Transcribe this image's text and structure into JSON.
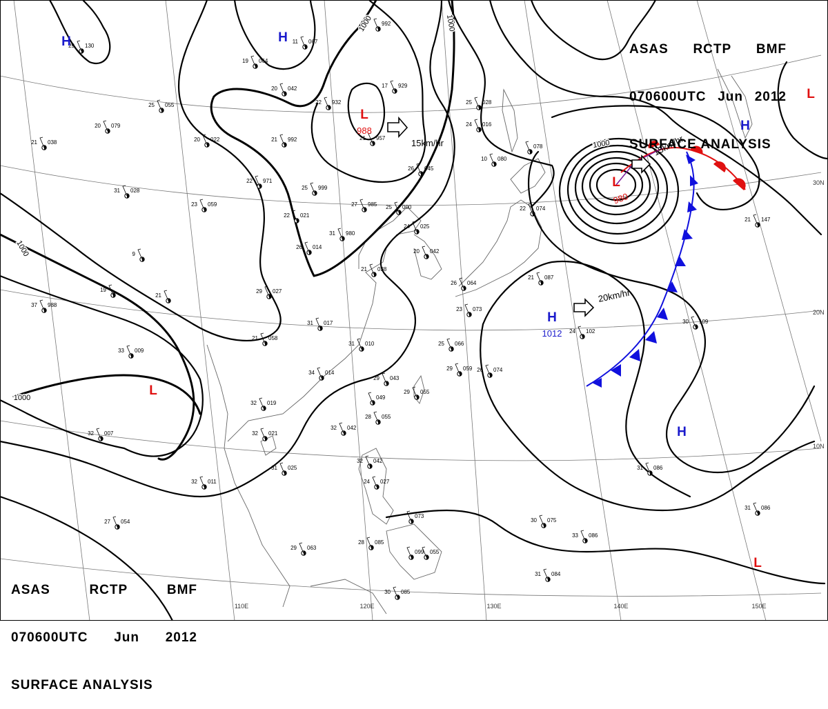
{
  "header_top": {
    "line1": [
      "ASAS",
      "RCTP",
      "BMF"
    ],
    "line2": [
      "070600UTC",
      "Jun",
      "2012"
    ],
    "line3": "SURFACE ANALYSIS"
  },
  "header_bottom": {
    "line1": [
      "ASAS",
      "RCTP",
      "BMF"
    ],
    "line2": [
      "070600UTC",
      "Jun",
      "2012"
    ],
    "line3": "SURFACE ANALYSIS"
  },
  "colors": {
    "high": "#1a1acc",
    "low": "#e01010",
    "cold_front": "#1010dd",
    "warm_front": "#e01010",
    "isobar": "#000000"
  },
  "longitude_labels": [
    "110E",
    "120E",
    "130E",
    "140E",
    "150E"
  ],
  "latitude_labels": [
    "30N",
    "20N",
    "10N"
  ],
  "pressure_centers": [
    {
      "type": "H",
      "value": ""
    },
    {
      "type": "H",
      "value": ""
    },
    {
      "type": "L",
      "value": "988"
    },
    {
      "type": "L",
      "value": "980"
    },
    {
      "type": "H",
      "value": ""
    },
    {
      "type": "L",
      "value": ""
    },
    {
      "type": "H",
      "value": "1012"
    },
    {
      "type": "L",
      "value": ""
    },
    {
      "type": "H",
      "value": ""
    },
    {
      "type": "L",
      "value": ""
    }
  ],
  "isobar_labels": [
    "1000",
    "1000",
    "1000",
    "1000",
    "1000"
  ],
  "motion_vectors": [
    "15km/hr",
    "15km/hr",
    "20km/hr"
  ],
  "stations": [
    {
      "t": "29",
      "p": "130"
    },
    {
      "t": "11",
      "p": "067"
    },
    {
      "t": "",
      "p": "992"
    },
    {
      "t": "19",
      "p": "064"
    },
    {
      "t": "20",
      "p": "042"
    },
    {
      "t": "25",
      "p": "055"
    },
    {
      "t": "22",
      "p": "932"
    },
    {
      "t": "17",
      "p": "929"
    },
    {
      "t": "25",
      "p": "028"
    },
    {
      "t": "24",
      "p": "016"
    },
    {
      "t": "20",
      "p": "079"
    },
    {
      "t": "21",
      "p": "038"
    },
    {
      "t": "20",
      "p": "022"
    },
    {
      "t": "21",
      "p": "992"
    },
    {
      "t": "21",
      "p": "957"
    },
    {
      "t": "10",
      "p": "080"
    },
    {
      "t": "",
      "p": "078"
    },
    {
      "t": "26",
      "p": "045"
    },
    {
      "t": "22",
      "p": "971"
    },
    {
      "t": "25",
      "p": "999"
    },
    {
      "t": "31",
      "p": "028"
    },
    {
      "t": "23",
      "p": "059"
    },
    {
      "t": "27",
      "p": "985"
    },
    {
      "t": "25",
      "p": "000"
    },
    {
      "t": "22",
      "p": "074"
    },
    {
      "t": "22",
      "p": "021"
    },
    {
      "t": "31",
      "p": "980"
    },
    {
      "t": "24",
      "p": "025"
    },
    {
      "t": "26",
      "p": "014"
    },
    {
      "t": "20",
      "p": "042"
    },
    {
      "t": "21",
      "p": "147"
    },
    {
      "t": "9",
      "p": ""
    },
    {
      "t": "21",
      "p": "038"
    },
    {
      "t": "19",
      "p": ""
    },
    {
      "t": "21",
      "p": ""
    },
    {
      "t": "37",
      "p": "988"
    },
    {
      "t": "29",
      "p": "027"
    },
    {
      "t": "26",
      "p": "064"
    },
    {
      "t": "21",
      "p": "087"
    },
    {
      "t": "23",
      "p": "073"
    },
    {
      "t": "31",
      "p": "017"
    },
    {
      "t": "33",
      "p": "009"
    },
    {
      "t": "21",
      "p": "058"
    },
    {
      "t": "31",
      "p": "010"
    },
    {
      "t": "30",
      "p": "109"
    },
    {
      "t": "25",
      "p": "066"
    },
    {
      "t": "24",
      "p": "102"
    },
    {
      "t": "34",
      "p": "014"
    },
    {
      "t": "29",
      "p": "059"
    },
    {
      "t": "26",
      "p": "074"
    },
    {
      "t": "29",
      "p": "043"
    },
    {
      "t": "",
      "p": "049"
    },
    {
      "t": "29",
      "p": "055"
    },
    {
      "t": "28",
      "p": "055"
    },
    {
      "t": "32",
      "p": "019"
    },
    {
      "t": "32",
      "p": "042"
    },
    {
      "t": "32",
      "p": "021"
    },
    {
      "t": "32",
      "p": "007"
    },
    {
      "t": "31",
      "p": "025"
    },
    {
      "t": "32",
      "p": "042"
    },
    {
      "t": "24",
      "p": "027"
    },
    {
      "t": "31",
      "p": "086"
    },
    {
      "t": "32",
      "p": "011"
    },
    {
      "t": "",
      "p": "073"
    },
    {
      "t": "30",
      "p": "075"
    },
    {
      "t": "31",
      "p": "086"
    },
    {
      "t": "27",
      "p": "054"
    },
    {
      "t": "33",
      "p": "086"
    },
    {
      "t": "29",
      "p": "063"
    },
    {
      "t": "28",
      "p": "085"
    },
    {
      "t": "",
      "p": "099"
    },
    {
      "t": "",
      "p": "055"
    },
    {
      "t": "31",
      "p": "084"
    },
    {
      "t": "30",
      "p": "085"
    }
  ]
}
